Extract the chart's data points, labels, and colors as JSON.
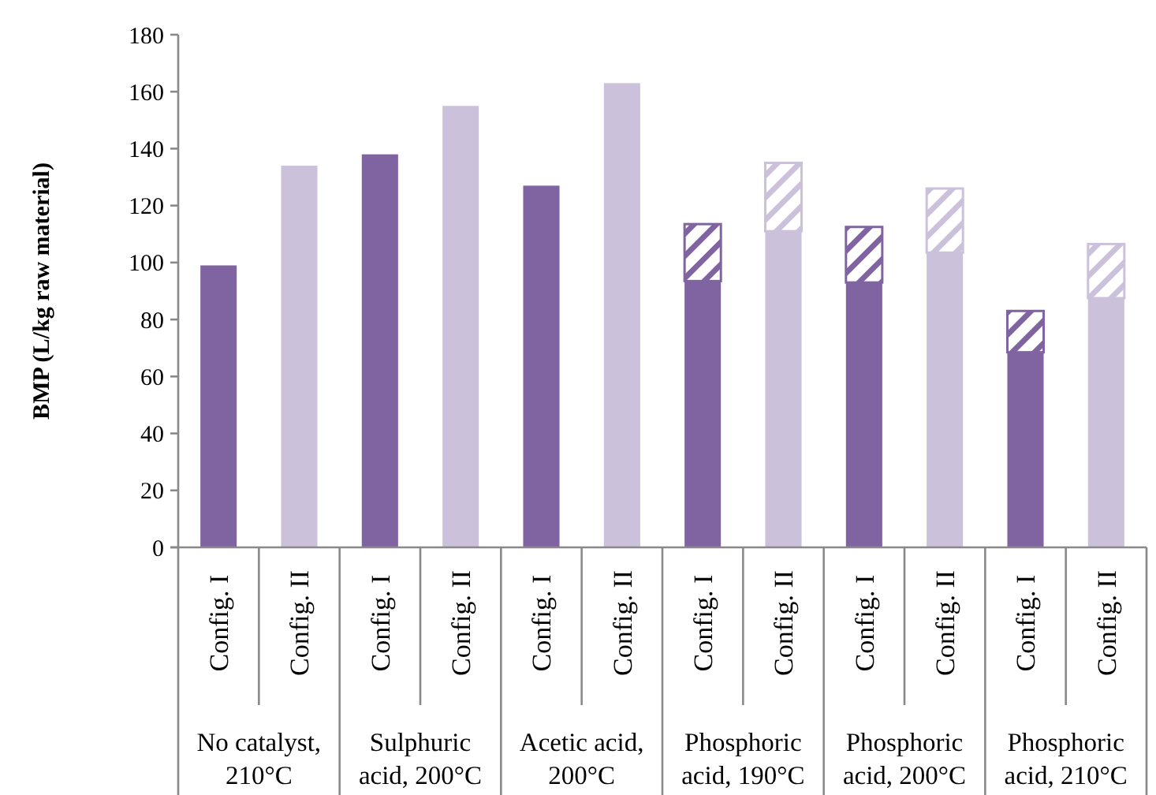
{
  "chart_data": {
    "type": "bar",
    "stacked": true,
    "ylabel": "BMP (L/kg raw material)",
    "ylim": [
      0,
      180
    ],
    "yticks": [
      0,
      20,
      40,
      60,
      80,
      100,
      120,
      140,
      160,
      180
    ],
    "grid": false,
    "categories": [
      "Config. I",
      "Config. II",
      "Config. I",
      "Config. II",
      "Config. I",
      "Config. II",
      "Config. I",
      "Config. II",
      "Config. I",
      "Config. II",
      "Config. I",
      "Config. II"
    ],
    "series": [
      {
        "colors": [
          "#8064a2",
          "#ccc1da",
          "#8064a2",
          "#ccc1da",
          "#8064a2",
          "#ccc1da",
          "#8064a2",
          "#ccc1da",
          "#8064a2",
          "#ccc1da",
          "#8064a2",
          "#ccc1da"
        ],
        "values": [
          99,
          134,
          138,
          155,
          127,
          163,
          93.5,
          111,
          93,
          103.5,
          68.5,
          87.5
        ]
      },
      {
        "colors": [
          null,
          null,
          null,
          null,
          null,
          null,
          "#8064a2",
          "#ccc1da",
          "#8064a2",
          "#ccc1da",
          "#8064a2",
          "#ccc1da"
        ],
        "values": [
          null,
          null,
          null,
          null,
          null,
          null,
          20,
          24,
          19.5,
          22.5,
          14.5,
          19
        ]
      }
    ],
    "annotations": [
      "No catalyst, 210°C",
      "Sulphuric acid, 200°C",
      "Acetic acid, 200°C",
      "Phosphoric acid, 190°C",
      "Phosphoric acid, 200°C",
      "Phosphoric acid, 210°C"
    ]
  }
}
